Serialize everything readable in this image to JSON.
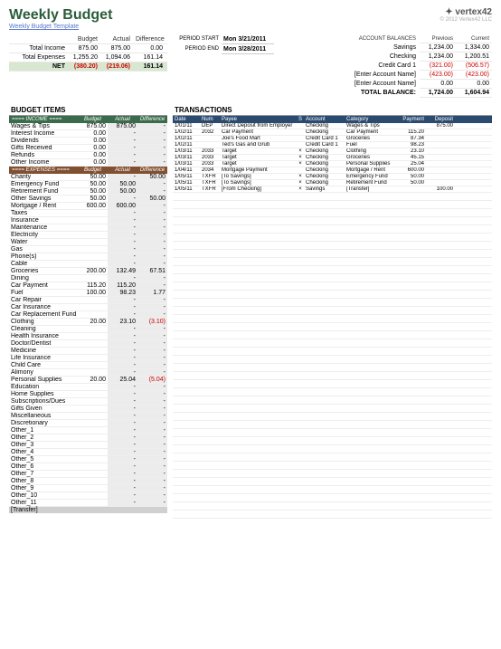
{
  "header": {
    "title": "Weekly Budget",
    "subtitle": "Weekly Budget Template",
    "logo_name": "vertex42",
    "logo_copyright": "© 2012 Vertex42 LLC"
  },
  "summary": {
    "headers": [
      "Budget",
      "Actual",
      "Difference"
    ],
    "income_label": "Total Income",
    "income": [
      "875.00",
      "875.00",
      "0.00"
    ],
    "expense_label": "Total Expenses",
    "expense": [
      "1,255.20",
      "1,094.06",
      "161.14"
    ],
    "net_label": "NET",
    "net": [
      "(380.20)",
      "(219.06)",
      "161.14"
    ]
  },
  "period": {
    "start_label": "PERIOD START",
    "start_value": "Mon 3/21/2011",
    "end_label": "PERIOD END",
    "end_value": "Mon 3/28/2011"
  },
  "balances": {
    "title": "ACCOUNT BALANCES",
    "headers": [
      "Previous",
      "Current"
    ],
    "rows": [
      {
        "label": "Savings",
        "prev": "1,234.00",
        "curr": "1,334.00"
      },
      {
        "label": "Checking",
        "prev": "1,234.00",
        "curr": "1,200.51"
      },
      {
        "label": "Credit Card 1",
        "prev": "(321.00)",
        "curr": "(506.57)",
        "neg": true
      },
      {
        "label": "[Enter Account Name]",
        "prev": "(423.00)",
        "curr": "(423.00)",
        "neg": true
      },
      {
        "label": "[Enter Account Name]",
        "prev": "0.00",
        "curr": "0.00"
      }
    ],
    "total_label": "TOTAL BALANCE:",
    "total_prev": "1,724.00",
    "total_curr": "1,604.94"
  },
  "budget_items": {
    "title": "BUDGET ITEMS",
    "income_header": "==== INCOME ====",
    "col_headers": [
      "Budget",
      "Actual",
      "Difference"
    ],
    "income_rows": [
      {
        "label": "Wages & Tips",
        "budget": "875.00",
        "actual": "875.00",
        "diff": "-"
      },
      {
        "label": "Interest Income",
        "budget": "0.00",
        "actual": "-",
        "diff": "-"
      },
      {
        "label": "Dividends",
        "budget": "0.00",
        "actual": "-",
        "diff": "-"
      },
      {
        "label": "Gifts Received",
        "budget": "0.00",
        "actual": "-",
        "diff": "-"
      },
      {
        "label": "Refunds",
        "budget": "0.00",
        "actual": "-",
        "diff": "-"
      },
      {
        "label": "Other Income",
        "budget": "0.00",
        "actual": "-",
        "diff": "-"
      }
    ],
    "expense_header": "==== EXPENSES ====",
    "expense_rows": [
      {
        "label": "Charity",
        "budget": "50.00",
        "actual": "-",
        "diff": "50.00"
      },
      {
        "label": "Emergency Fund",
        "budget": "50.00",
        "actual": "50.00",
        "diff": "-"
      },
      {
        "label": "Retirement Fund",
        "budget": "50.00",
        "actual": "50.00",
        "diff": "-"
      },
      {
        "label": "Other Savings",
        "budget": "50.00",
        "actual": "-",
        "diff": "50.00"
      },
      {
        "label": "Mortgage / Rent",
        "budget": "600.00",
        "actual": "600.00",
        "diff": "-"
      },
      {
        "label": "Taxes",
        "budget": "",
        "actual": "-",
        "diff": "-"
      },
      {
        "label": "Insurance",
        "budget": "",
        "actual": "-",
        "diff": "-"
      },
      {
        "label": "Maintenance",
        "budget": "",
        "actual": "-",
        "diff": "-"
      },
      {
        "label": "Electricity",
        "budget": "",
        "actual": "-",
        "diff": "-"
      },
      {
        "label": "Water",
        "budget": "",
        "actual": "-",
        "diff": "-"
      },
      {
        "label": "Gas",
        "budget": "",
        "actual": "-",
        "diff": "-"
      },
      {
        "label": "Phone(s)",
        "budget": "",
        "actual": "-",
        "diff": "-"
      },
      {
        "label": "Cable",
        "budget": "",
        "actual": "-",
        "diff": "-"
      },
      {
        "label": "Groceries",
        "budget": "200.00",
        "actual": "132.49",
        "diff": "67.51"
      },
      {
        "label": "Dining",
        "budget": "",
        "actual": "-",
        "diff": "-"
      },
      {
        "label": "Car Payment",
        "budget": "115.20",
        "actual": "115.20",
        "diff": "-"
      },
      {
        "label": "Fuel",
        "budget": "100.00",
        "actual": "98.23",
        "diff": "1.77"
      },
      {
        "label": "Car Repair",
        "budget": "",
        "actual": "-",
        "diff": "-"
      },
      {
        "label": "Car Insurance",
        "budget": "",
        "actual": "-",
        "diff": "-"
      },
      {
        "label": "Car Replacement Fund",
        "budget": "",
        "actual": "-",
        "diff": "-"
      },
      {
        "label": "Clothing",
        "budget": "20.00",
        "actual": "23.10",
        "diff": "(3.10)",
        "neg": true
      },
      {
        "label": "Cleaning",
        "budget": "",
        "actual": "-",
        "diff": "-"
      },
      {
        "label": "Health Insurance",
        "budget": "",
        "actual": "-",
        "diff": "-"
      },
      {
        "label": "Doctor/Dentist",
        "budget": "",
        "actual": "-",
        "diff": "-"
      },
      {
        "label": "Medicine",
        "budget": "",
        "actual": "-",
        "diff": "-"
      },
      {
        "label": "Life Insurance",
        "budget": "",
        "actual": "-",
        "diff": "-"
      },
      {
        "label": "Child Care",
        "budget": "",
        "actual": "-",
        "diff": "-"
      },
      {
        "label": "Alimony",
        "budget": "",
        "actual": "-",
        "diff": "-"
      },
      {
        "label": "Personal Supplies",
        "budget": "20.00",
        "actual": "25.04",
        "diff": "(5.04)",
        "neg": true
      },
      {
        "label": "Education",
        "budget": "",
        "actual": "-",
        "diff": "-"
      },
      {
        "label": "Home Supplies",
        "budget": "",
        "actual": "-",
        "diff": "-"
      },
      {
        "label": "Subscriptions/Dues",
        "budget": "",
        "actual": "-",
        "diff": "-"
      },
      {
        "label": "Gifts Given",
        "budget": "",
        "actual": "-",
        "diff": "-"
      },
      {
        "label": "Miscellaneous",
        "budget": "",
        "actual": "-",
        "diff": "-"
      },
      {
        "label": "Discretionary",
        "budget": "",
        "actual": "-",
        "diff": "-"
      },
      {
        "label": "Other_1",
        "budget": "",
        "actual": "-",
        "diff": "-"
      },
      {
        "label": "Other_2",
        "budget": "",
        "actual": "-",
        "diff": "-"
      },
      {
        "label": "Other_3",
        "budget": "",
        "actual": "-",
        "diff": "-"
      },
      {
        "label": "Other_4",
        "budget": "",
        "actual": "-",
        "diff": "-"
      },
      {
        "label": "Other_5",
        "budget": "",
        "actual": "-",
        "diff": "-"
      },
      {
        "label": "Other_6",
        "budget": "",
        "actual": "-",
        "diff": "-"
      },
      {
        "label": "Other_7",
        "budget": "",
        "actual": "-",
        "diff": "-"
      },
      {
        "label": "Other_8",
        "budget": "",
        "actual": "-",
        "diff": "-"
      },
      {
        "label": "Other_9",
        "budget": "",
        "actual": "-",
        "diff": "-"
      },
      {
        "label": "Other_10",
        "budget": "",
        "actual": "-",
        "diff": "-"
      },
      {
        "label": "Other_11",
        "budget": "",
        "actual": "-",
        "diff": "-"
      }
    ],
    "transfer_label": "[Transfer]"
  },
  "transactions": {
    "title": "TRANSACTIONS",
    "headers": [
      "Date",
      "Num",
      "Payee",
      "S",
      "Account",
      "Category",
      "Payment",
      "Deposit"
    ],
    "rows": [
      {
        "date": "1/01/11",
        "num": "DEP",
        "payee": "Direct Deposit from Employer",
        "s": "",
        "acct": "Checking",
        "cat": "Wages & Tips",
        "pay": "",
        "dep": "875.00"
      },
      {
        "date": "1/02/11",
        "num": "2032",
        "payee": "Car Payment",
        "s": "",
        "acct": "Checking",
        "cat": "Car Payment",
        "pay": "115.20",
        "dep": ""
      },
      {
        "date": "1/02/11",
        "num": "",
        "payee": "Joe's Food Mart",
        "s": "",
        "acct": "Credit Card 1",
        "cat": "Groceries",
        "pay": "87.34",
        "dep": ""
      },
      {
        "date": "1/02/11",
        "num": "",
        "payee": "Ted's Gas and Grub",
        "s": "",
        "acct": "Credit Card 1",
        "cat": "Fuel",
        "pay": "98.23",
        "dep": ""
      },
      {
        "date": "1/03/11",
        "num": "2033",
        "payee": "Target",
        "s": "×",
        "acct": "Checking",
        "cat": "Clothing",
        "pay": "23.10",
        "dep": ""
      },
      {
        "date": "1/03/11",
        "num": "2033",
        "payee": "Target",
        "s": "×",
        "acct": "Checking",
        "cat": "Groceries",
        "pay": "45.15",
        "dep": ""
      },
      {
        "date": "1/03/11",
        "num": "2033",
        "payee": "Target",
        "s": "×",
        "acct": "Checking",
        "cat": "Personal Supplies",
        "pay": "25.04",
        "dep": ""
      },
      {
        "date": "1/04/11",
        "num": "2034",
        "payee": "Mortgage Payment",
        "s": "",
        "acct": "Checking",
        "cat": "Mortgage / Rent",
        "pay": "600.00",
        "dep": ""
      },
      {
        "date": "1/05/11",
        "num": "TXFR",
        "payee": "[To Savings]",
        "s": "×",
        "acct": "Checking",
        "cat": "Emergency Fund",
        "pay": "50.00",
        "dep": ""
      },
      {
        "date": "1/05/11",
        "num": "TXFR",
        "payee": "[To Savings]",
        "s": "×",
        "acct": "Checking",
        "cat": "Retirement Fund",
        "pay": "50.00",
        "dep": ""
      },
      {
        "date": "1/05/11",
        "num": "TXFR",
        "payee": "[From Checking]",
        "s": "×",
        "acct": "Savings",
        "cat": "[Transfer]",
        "pay": "",
        "dep": "100.00"
      }
    ],
    "empty_rows": 40
  }
}
